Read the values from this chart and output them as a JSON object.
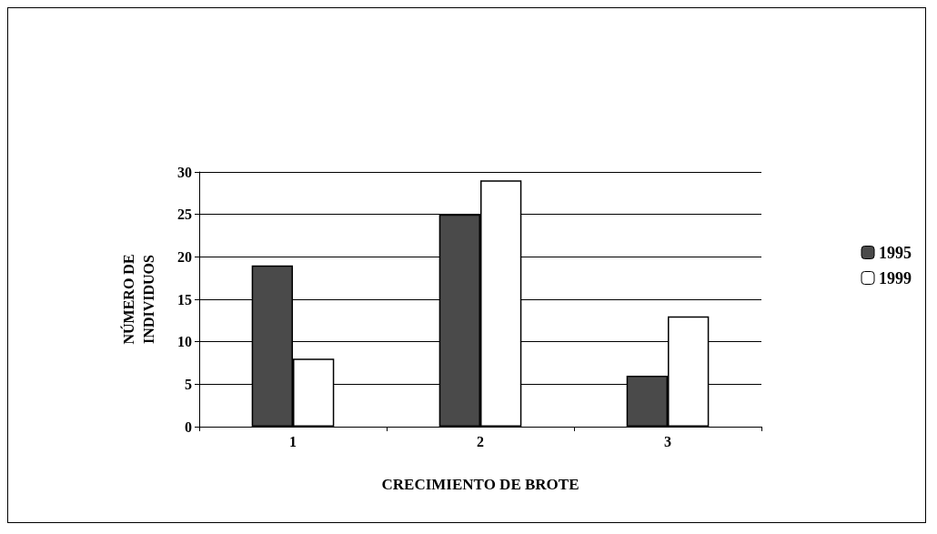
{
  "chart_data": {
    "type": "bar",
    "xlabel": "CRECIMIENTO DE BROTE",
    "ylabel": "NÚMERO DE\nINDIVIDUOS",
    "categories": [
      "1",
      "2",
      "3"
    ],
    "series": [
      {
        "name": "1995",
        "color": "#4a4a4a",
        "values": [
          19,
          25,
          6
        ]
      },
      {
        "name": "1999",
        "color": "#ffffff",
        "values": [
          8,
          29,
          13
        ]
      }
    ],
    "ylim": [
      0,
      30
    ],
    "yticks": [
      0,
      5,
      10,
      15,
      20,
      25,
      30
    ],
    "grid": "y",
    "legend": "right"
  }
}
